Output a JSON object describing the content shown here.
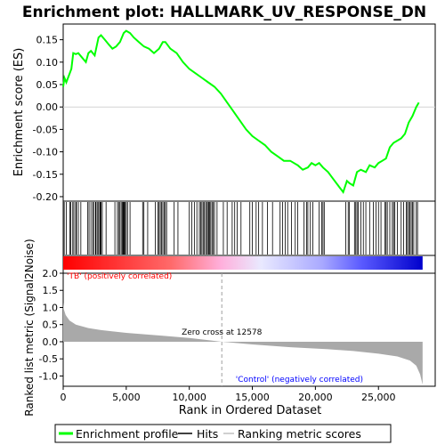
{
  "chart_data": {
    "type": "line",
    "title": "Enrichment plot: HALLMARK_UV_RESPONSE_DN",
    "xlabel": "Rank in Ordered Dataset",
    "x_ticks": [
      "0",
      "5,000",
      "10,000",
      "15,000",
      "20,000",
      "25,000"
    ],
    "x_tick_values": [
      0,
      5000,
      10000,
      15000,
      20000,
      25000
    ],
    "xlim": [
      0,
      29500
    ],
    "n_genes": 28500,
    "es_panel": {
      "ylabel": "Enrichment score (ES)",
      "ylim": [
        -0.21,
        0.185
      ],
      "y_ticks": [
        "0.15",
        "0.10",
        "0.05",
        "0.00",
        "-0.05",
        "-0.10",
        "-0.15",
        "-0.20"
      ],
      "y_tick_values": [
        0.15,
        0.1,
        0.05,
        0.0,
        -0.05,
        -0.1,
        -0.15,
        -0.2
      ],
      "color": "#00ff00",
      "series": [
        {
          "name": "Enrichment profile",
          "x": [
            0,
            100,
            250,
            450,
            650,
            800,
            1000,
            1200,
            1500,
            1800,
            2000,
            2200,
            2500,
            2800,
            3000,
            3300,
            3600,
            3900,
            4200,
            4500,
            4800,
            5000,
            5300,
            5600,
            6000,
            6400,
            6800,
            7200,
            7600,
            7900,
            8100,
            8500,
            9000,
            9500,
            10000,
            10500,
            11000,
            11500,
            12000,
            12500,
            13000,
            13500,
            14000,
            14500,
            15000,
            15500,
            16000,
            16500,
            17000,
            17500,
            18000,
            18300,
            18600,
            19000,
            19400,
            19700,
            20000,
            20300,
            20600,
            21000,
            21400,
            21800,
            22200,
            22500,
            22700,
            23000,
            23300,
            23600,
            24000,
            24300,
            24700,
            25000,
            25300,
            25600,
            25900,
            26200,
            26500,
            26800,
            27100,
            27400,
            27700,
            28000,
            28200
          ],
          "y": [
            0.045,
            0.065,
            0.055,
            0.07,
            0.085,
            0.12,
            0.118,
            0.12,
            0.11,
            0.1,
            0.12,
            0.125,
            0.115,
            0.155,
            0.16,
            0.15,
            0.14,
            0.13,
            0.135,
            0.145,
            0.165,
            0.17,
            0.165,
            0.155,
            0.145,
            0.135,
            0.13,
            0.12,
            0.13,
            0.145,
            0.145,
            0.13,
            0.12,
            0.1,
            0.085,
            0.075,
            0.065,
            0.055,
            0.045,
            0.03,
            0.01,
            -0.01,
            -0.03,
            -0.05,
            -0.065,
            -0.075,
            -0.085,
            -0.1,
            -0.11,
            -0.12,
            -0.12,
            -0.125,
            -0.13,
            -0.14,
            -0.135,
            -0.125,
            -0.13,
            -0.125,
            -0.135,
            -0.145,
            -0.16,
            -0.175,
            -0.19,
            -0.165,
            -0.17,
            -0.175,
            -0.145,
            -0.14,
            -0.145,
            -0.13,
            -0.135,
            -0.125,
            -0.12,
            -0.115,
            -0.09,
            -0.08,
            -0.075,
            -0.07,
            -0.06,
            -0.035,
            -0.02,
            0.0,
            0.01
          ]
        }
      ]
    },
    "hits_panel": {
      "series_name": "Hits",
      "hit_ranks": [
        80,
        250,
        520,
        600,
        760,
        850,
        1000,
        1050,
        1200,
        1400,
        1950,
        2050,
        2200,
        2350,
        2400,
        2550,
        2600,
        2700,
        2800,
        2900,
        2950,
        3000,
        3100,
        3400,
        4100,
        4300,
        4400,
        4500,
        4600,
        4700,
        4750,
        4800,
        4850,
        4900,
        5000,
        5100,
        5300,
        6300,
        6400,
        6700,
        7300,
        7500,
        7600,
        7700,
        7800,
        7900,
        8000,
        8100,
        8200,
        8800,
        9100,
        10000,
        10200,
        10400,
        10600,
        10800,
        10900,
        11000,
        11100,
        11200,
        11300,
        11400,
        11500,
        11550,
        11600,
        11700,
        11800,
        11900,
        12000,
        12200,
        12700,
        13000,
        13400,
        13600,
        13800,
        14100,
        14800,
        15000,
        15300,
        15500,
        15800,
        16200,
        16600,
        17200,
        17400,
        17600,
        17800,
        18100,
        18400,
        18600,
        19100,
        19300,
        19400,
        19600,
        19800,
        20300,
        20500,
        20600,
        20700,
        22400,
        22600,
        22700,
        23100,
        23200,
        23300,
        23400,
        23600,
        23800,
        24000,
        24300,
        24600,
        24800,
        25000,
        25200,
        25500,
        25600,
        25700,
        25900,
        26100,
        26200,
        26300,
        26500,
        26800,
        27000,
        27200,
        27300,
        27400,
        27500,
        27600,
        27700,
        27800,
        28000,
        28100
      ]
    },
    "metric_panel": {
      "series_name": "Ranking metric scores",
      "ylabel": "Ranked list metric (Signal2Noise)",
      "ylim": [
        -1.3,
        2.0
      ],
      "y_ticks": [
        "2.0",
        "1.5",
        "1.0",
        "0.5",
        "0.0",
        "-0.5",
        "-1.0"
      ],
      "y_tick_values": [
        2.0,
        1.5,
        1.0,
        0.5,
        0.0,
        -0.5,
        -1.0
      ],
      "x": [
        0,
        50,
        200,
        500,
        1000,
        2000,
        3000,
        5000,
        8000,
        10000,
        12578,
        15000,
        18000,
        21000,
        23000,
        25000,
        26500,
        27500,
        28000,
        28300,
        28500
      ],
      "values": [
        1.15,
        0.95,
        0.78,
        0.62,
        0.5,
        0.4,
        0.34,
        0.26,
        0.17,
        0.11,
        0.0,
        -0.08,
        -0.16,
        -0.22,
        -0.27,
        -0.35,
        -0.43,
        -0.55,
        -0.7,
        -0.95,
        -1.25
      ],
      "fill_color": "#a9a9a9",
      "zero_cross_rank": 12578,
      "zero_cross_label": "Zero cross at 12578",
      "pos_label": "'TB' (positively correlated)",
      "neg_label": "'Control' (negatively correlated)",
      "pos_label_color": "#ff0000",
      "neg_label_color": "#0000ff"
    },
    "legend": {
      "placement": "bottom",
      "items": [
        {
          "label": "Enrichment profile",
          "color": "#00ff00"
        },
        {
          "label": "Hits",
          "color": "#000000"
        },
        {
          "label": "Ranking metric scores",
          "color": "#c0c0c0"
        }
      ]
    },
    "grid": false
  }
}
